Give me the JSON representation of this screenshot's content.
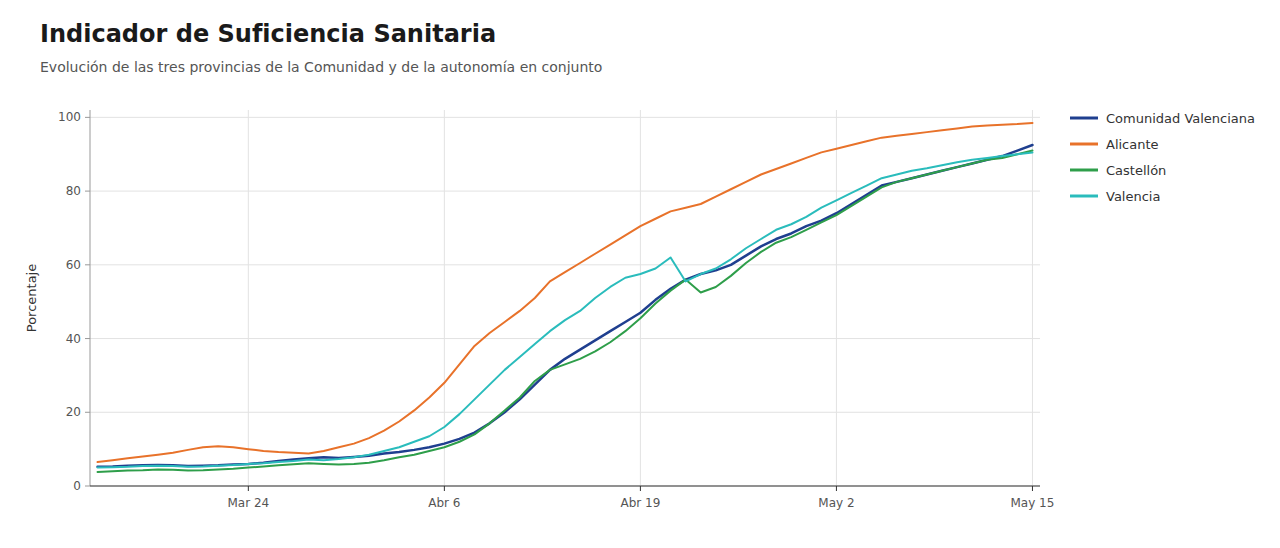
{
  "chart_data": {
    "type": "line",
    "title": "Indicador de Suficiencia Sanitaria",
    "subtitle": "Evolución de las tres provincias de la Comunidad y de la autonomía en conjunto",
    "y_label": "Porcentaje",
    "categories": [
      null,
      null,
      null,
      null,
      null,
      null,
      null,
      null,
      null,
      null,
      "Mar 24",
      null,
      null,
      null,
      null,
      null,
      null,
      null,
      null,
      null,
      null,
      null,
      null,
      "Abr 6",
      null,
      null,
      null,
      null,
      null,
      null,
      null,
      null,
      null,
      null,
      null,
      null,
      "Abr 19",
      null,
      null,
      null,
      null,
      null,
      null,
      null,
      null,
      null,
      null,
      null,
      null,
      "May 2",
      null,
      null,
      null,
      null,
      null,
      null,
      null,
      null,
      null,
      null,
      null,
      null,
      "May 15"
    ],
    "series": [
      {
        "name": "Comunidad Valenciana",
        "color": "#1f3f8f",
        "values": [
          5.2,
          5.3,
          5.5,
          5.6,
          5.7,
          5.6,
          5.4,
          5.5,
          5.6,
          5.8,
          6.0,
          6.3,
          6.8,
          7.2,
          7.5,
          7.8,
          7.6,
          7.9,
          8.2,
          8.8,
          9.2,
          9.8,
          10.5,
          11.5,
          12.8,
          14.5,
          17.0,
          20.0,
          23.5,
          27.5,
          31.5,
          34.5,
          37.0,
          39.5,
          42.0,
          44.5,
          47.0,
          50.5,
          53.5,
          56.0,
          57.5,
          58.5,
          60.0,
          62.5,
          65.0,
          67.0,
          68.5,
          70.5,
          72.0,
          74.0,
          76.5,
          79.0,
          81.5,
          82.5,
          83.5,
          84.5,
          85.5,
          86.5,
          87.5,
          88.5,
          89.5,
          91.0,
          92.5
        ]
      },
      {
        "name": "Alicante",
        "color": "#e8722a",
        "values": [
          6.5,
          7.0,
          7.5,
          8.0,
          8.5,
          9.0,
          9.8,
          10.5,
          10.8,
          10.5,
          10.0,
          9.5,
          9.2,
          9.0,
          8.8,
          9.5,
          10.5,
          11.5,
          13.0,
          15.0,
          17.5,
          20.5,
          24.0,
          28.0,
          33.0,
          38.0,
          41.5,
          44.5,
          47.5,
          51.0,
          55.5,
          58.0,
          60.5,
          63.0,
          65.5,
          68.0,
          70.5,
          72.5,
          74.5,
          75.5,
          76.5,
          78.5,
          80.5,
          82.5,
          84.5,
          86.0,
          87.5,
          89.0,
          90.5,
          91.5,
          92.5,
          93.5,
          94.5,
          95.0,
          95.5,
          96.0,
          96.5,
          97.0,
          97.5,
          97.8,
          98.0,
          98.2,
          98.5
        ]
      },
      {
        "name": "Castellón",
        "color": "#2e9e4a",
        "values": [
          3.8,
          4.0,
          4.2,
          4.3,
          4.5,
          4.4,
          4.2,
          4.3,
          4.5,
          4.7,
          5.0,
          5.3,
          5.6,
          5.9,
          6.2,
          6.0,
          5.8,
          6.0,
          6.3,
          7.0,
          7.8,
          8.5,
          9.5,
          10.5,
          12.0,
          14.0,
          17.0,
          20.5,
          24.0,
          28.5,
          31.5,
          33.0,
          34.5,
          36.5,
          39.0,
          42.0,
          45.5,
          49.5,
          53.0,
          56.0,
          52.5,
          54.0,
          57.0,
          60.5,
          63.5,
          66.0,
          67.5,
          69.5,
          71.5,
          73.5,
          76.0,
          78.5,
          81.0,
          82.5,
          83.5,
          84.5,
          85.5,
          86.5,
          87.5,
          88.5,
          89.0,
          90.0,
          91.0
        ]
      },
      {
        "name": "Valencia",
        "color": "#2abcbc",
        "values": [
          5.0,
          5.1,
          5.2,
          5.4,
          5.5,
          5.4,
          5.2,
          5.3,
          5.5,
          5.7,
          6.0,
          6.2,
          6.5,
          6.8,
          7.2,
          7.0,
          7.3,
          7.8,
          8.5,
          9.5,
          10.5,
          12.0,
          13.5,
          16.0,
          19.5,
          23.5,
          27.5,
          31.5,
          35.0,
          38.5,
          42.0,
          45.0,
          47.5,
          51.0,
          54.0,
          56.5,
          57.5,
          59.0,
          62.0,
          55.5,
          57.5,
          59.0,
          61.5,
          64.5,
          67.0,
          69.5,
          71.0,
          73.0,
          75.5,
          77.5,
          79.5,
          81.5,
          83.5,
          84.5,
          85.5,
          86.2,
          87.0,
          87.8,
          88.5,
          89.0,
          89.5,
          90.0,
          90.5
        ]
      }
    ],
    "ylim": [
      0,
      102
    ],
    "yticks": [
      0,
      20,
      40,
      60,
      80,
      100
    ],
    "grid": true,
    "legend": "right"
  }
}
